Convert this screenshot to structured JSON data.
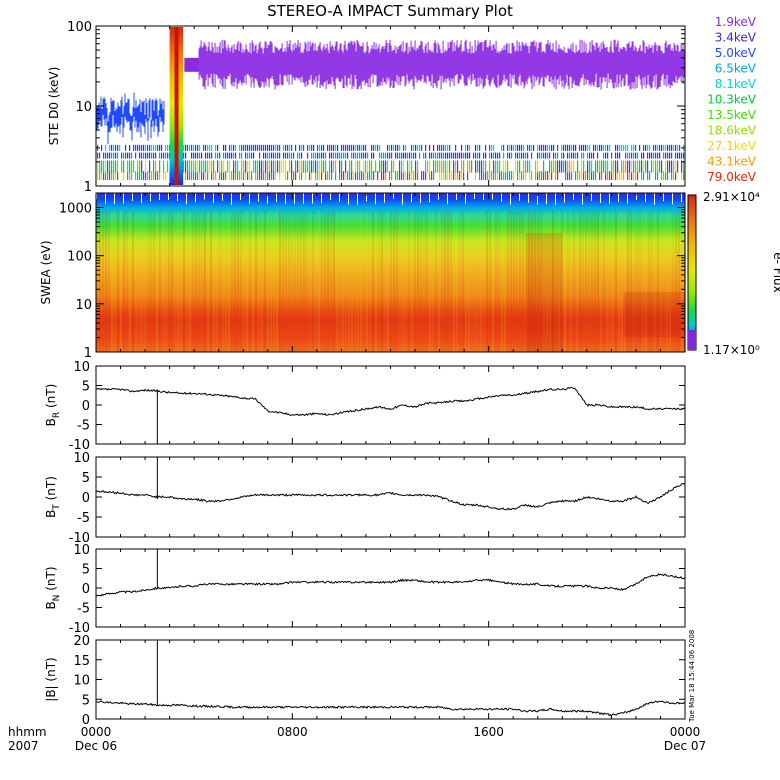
{
  "title": "STEREO-A IMPACT Summary Plot",
  "x_axis": {
    "unit_label": "hhmm",
    "year": "2007",
    "ticks": [
      "0000",
      "0800",
      "1600",
      "0000"
    ],
    "tick_dates": [
      "Dec 06",
      "",
      "",
      "Dec 07"
    ]
  },
  "footer_stamp": "Tue Mar 18 15:44:06 2008",
  "chart_data": [
    {
      "type": "line",
      "panel": "STE D0",
      "ylabel": "STE D0 (keV)",
      "yscale": "log",
      "ylim": [
        1,
        100
      ],
      "yticks": [
        "1",
        "10",
        "100"
      ],
      "legend_placement": "right",
      "series": [
        {
          "name": "1.9keV",
          "color": "#8a2be2"
        },
        {
          "name": "3.4keV",
          "color": "#3a2bd6"
        },
        {
          "name": "5.0keV",
          "color": "#1f4bff"
        },
        {
          "name": "6.5keV",
          "color": "#00a6e0"
        },
        {
          "name": "8.1keV",
          "color": "#00d4d4"
        },
        {
          "name": "10.3keV",
          "color": "#00cc33"
        },
        {
          "name": "13.5keV",
          "color": "#44dd00"
        },
        {
          "name": "18.6keV",
          "color": "#99dd00"
        },
        {
          "name": "27.1keV",
          "color": "#eedd00"
        },
        {
          "name": "43.1keV",
          "color": "#ff9900"
        },
        {
          "name": "79.0keV",
          "color": "#ee2200"
        }
      ],
      "segments": [
        {
          "series": "5.0keV",
          "x_start_hour": 0.0,
          "x_end_hour": 2.8,
          "value": 7
        },
        {
          "series": "1.9keV",
          "x_start_hour": 4.2,
          "x_end_hour": 24.0,
          "value": 32
        }
      ]
    },
    {
      "type": "heatmap",
      "panel": "SWEA",
      "ylabel": "SWEA (eV)",
      "yscale": "log",
      "ylim": [
        1,
        2000
      ],
      "yticks": [
        "1",
        "10",
        "100",
        "1000"
      ],
      "colorbar": {
        "label": "e- Flux",
        "max": "2.91×10⁴",
        "min": "1.17×10⁰"
      }
    },
    {
      "type": "line",
      "panel": "BR",
      "ylabel_main": "B",
      "ylabel_sub": "R",
      "ylabel_unit": " (nT)",
      "ylim": [
        -10,
        10
      ],
      "yticks": [
        "-10",
        "-5",
        "0",
        "5",
        "10"
      ],
      "x_hours": [
        0,
        0.5,
        1,
        1.5,
        2,
        2.5,
        3,
        3.5,
        4,
        4.5,
        5,
        5.5,
        6,
        6.5,
        7,
        7.5,
        8,
        8.5,
        9,
        9.5,
        10,
        10.5,
        11,
        11.5,
        12,
        12.5,
        13,
        13.5,
        14,
        14.5,
        15,
        15.5,
        16,
        16.5,
        17,
        17.5,
        18,
        18.5,
        19,
        19.5,
        20,
        20.5,
        21,
        21.5,
        22,
        22.5,
        23,
        23.5,
        24
      ],
      "y": [
        4,
        4,
        4,
        3.5,
        3.8,
        3.6,
        3.2,
        3,
        3,
        2.8,
        2.5,
        2.2,
        1.8,
        1.5,
        -1.5,
        -2,
        -2.5,
        -2.5,
        -2.2,
        -2.5,
        -2,
        -1.5,
        -1,
        -0.5,
        -1,
        0,
        -0.5,
        0.5,
        0.5,
        1,
        1,
        1.5,
        2,
        2.5,
        2.5,
        3,
        3.5,
        4,
        4,
        4.5,
        0,
        0,
        -0.5,
        -0.5,
        -0.5,
        -1,
        -1,
        -1,
        -1
      ],
      "spikes": [
        {
          "x_hour": 2.5,
          "y_from": 4,
          "y_to": -10
        }
      ]
    },
    {
      "type": "line",
      "panel": "BT",
      "ylabel_main": "B",
      "ylabel_sub": "T",
      "ylabel_unit": " (nT)",
      "ylim": [
        -10,
        10
      ],
      "yticks": [
        "-10",
        "-5",
        "0",
        "5",
        "10"
      ],
      "x_hours": [
        0,
        0.5,
        1,
        1.5,
        2,
        2.5,
        3,
        3.5,
        4,
        4.5,
        5,
        5.5,
        6,
        6.5,
        7,
        7.5,
        8,
        8.5,
        9,
        9.5,
        10,
        10.5,
        11,
        11.5,
        12,
        12.5,
        13,
        13.5,
        14,
        14.5,
        15,
        15.5,
        16,
        16.5,
        17,
        17.5,
        18,
        18.5,
        19,
        19.5,
        20,
        20.5,
        21,
        21.5,
        22,
        22.5,
        23,
        23.5,
        24
      ],
      "y": [
        1.5,
        1.2,
        1,
        0.5,
        0.5,
        0,
        0,
        -0.5,
        -0.5,
        -1,
        -1,
        -0.5,
        0,
        0.5,
        0.5,
        0.5,
        0.5,
        0.5,
        0.5,
        0.5,
        0.5,
        0.5,
        0.5,
        0.5,
        1,
        0.5,
        0.5,
        0.5,
        0,
        -1,
        -2,
        -2,
        -2.5,
        -3,
        -3,
        -2,
        -2.5,
        -1.5,
        -1,
        -1,
        0,
        -0.5,
        -1,
        -1,
        0,
        -1.5,
        0,
        2,
        3.5
      ],
      "spikes": [
        {
          "x_hour": 2.5,
          "y_from": -0.5,
          "y_to": 10
        }
      ]
    },
    {
      "type": "line",
      "panel": "BN",
      "ylabel_main": "B",
      "ylabel_sub": "N",
      "ylabel_unit": " (nT)",
      "ylim": [
        -10,
        10
      ],
      "yticks": [
        "-10",
        "-5",
        "0",
        "5",
        "10"
      ],
      "x_hours": [
        0,
        0.5,
        1,
        1.5,
        2,
        2.5,
        3,
        3.5,
        4,
        4.5,
        5,
        5.5,
        6,
        6.5,
        7,
        7.5,
        8,
        8.5,
        9,
        9.5,
        10,
        10.5,
        11,
        11.5,
        12,
        12.5,
        13,
        13.5,
        14,
        14.5,
        15,
        15.5,
        16,
        16.5,
        17,
        17.5,
        18,
        18.5,
        19,
        19.5,
        20,
        20.5,
        21,
        21.5,
        22,
        22.5,
        23,
        23.5,
        24
      ],
      "y": [
        -2,
        -1.5,
        -1,
        -1,
        -0.5,
        0,
        0,
        0.5,
        0.5,
        1,
        1,
        1,
        1,
        1,
        1,
        1,
        1.5,
        1.5,
        1.5,
        1.5,
        1.5,
        1.5,
        1.5,
        1.5,
        1.5,
        2,
        2,
        1.5,
        1.5,
        1.5,
        1.5,
        2,
        2,
        1.5,
        1,
        1,
        1,
        0.5,
        0.5,
        0.5,
        0.5,
        0,
        0,
        -0.5,
        1,
        3,
        3.5,
        3,
        2.5
      ],
      "spikes": [
        {
          "x_hour": 2.5,
          "y_from": 0,
          "y_to": 10
        }
      ]
    },
    {
      "type": "line",
      "panel": "B",
      "ylabel": "|B| (nT)",
      "ylim": [
        0,
        20
      ],
      "yticks": [
        "0",
        "5",
        "10",
        "15",
        "20"
      ],
      "x_hours": [
        0,
        0.5,
        1,
        1.5,
        2,
        2.5,
        3,
        3.5,
        4,
        4.5,
        5,
        5.5,
        6,
        6.5,
        7,
        7.5,
        8,
        8.5,
        9,
        9.5,
        10,
        10.5,
        11,
        11.5,
        12,
        12.5,
        13,
        13.5,
        14,
        14.5,
        15,
        15.5,
        16,
        16.5,
        17,
        17.5,
        18,
        18.5,
        19,
        19.5,
        20,
        20.5,
        21,
        21.5,
        22,
        22.5,
        23,
        23.5,
        24
      ],
      "y": [
        4.5,
        4.2,
        4,
        3.8,
        3.8,
        3.5,
        3.5,
        3.5,
        3.3,
        3.2,
        3.2,
        3,
        3,
        3,
        3,
        3,
        3,
        3,
        3,
        3,
        3,
        3,
        3,
        3,
        3,
        3,
        3,
        3,
        3,
        2.5,
        2.5,
        2.5,
        2.5,
        2.5,
        2.5,
        2,
        2,
        2.5,
        2,
        2,
        2,
        1.5,
        1,
        1.5,
        2.5,
        4,
        4.5,
        4,
        4
      ],
      "spikes": [
        {
          "x_hour": 2.5,
          "y_from": 3.5,
          "y_to": 20
        }
      ]
    }
  ]
}
